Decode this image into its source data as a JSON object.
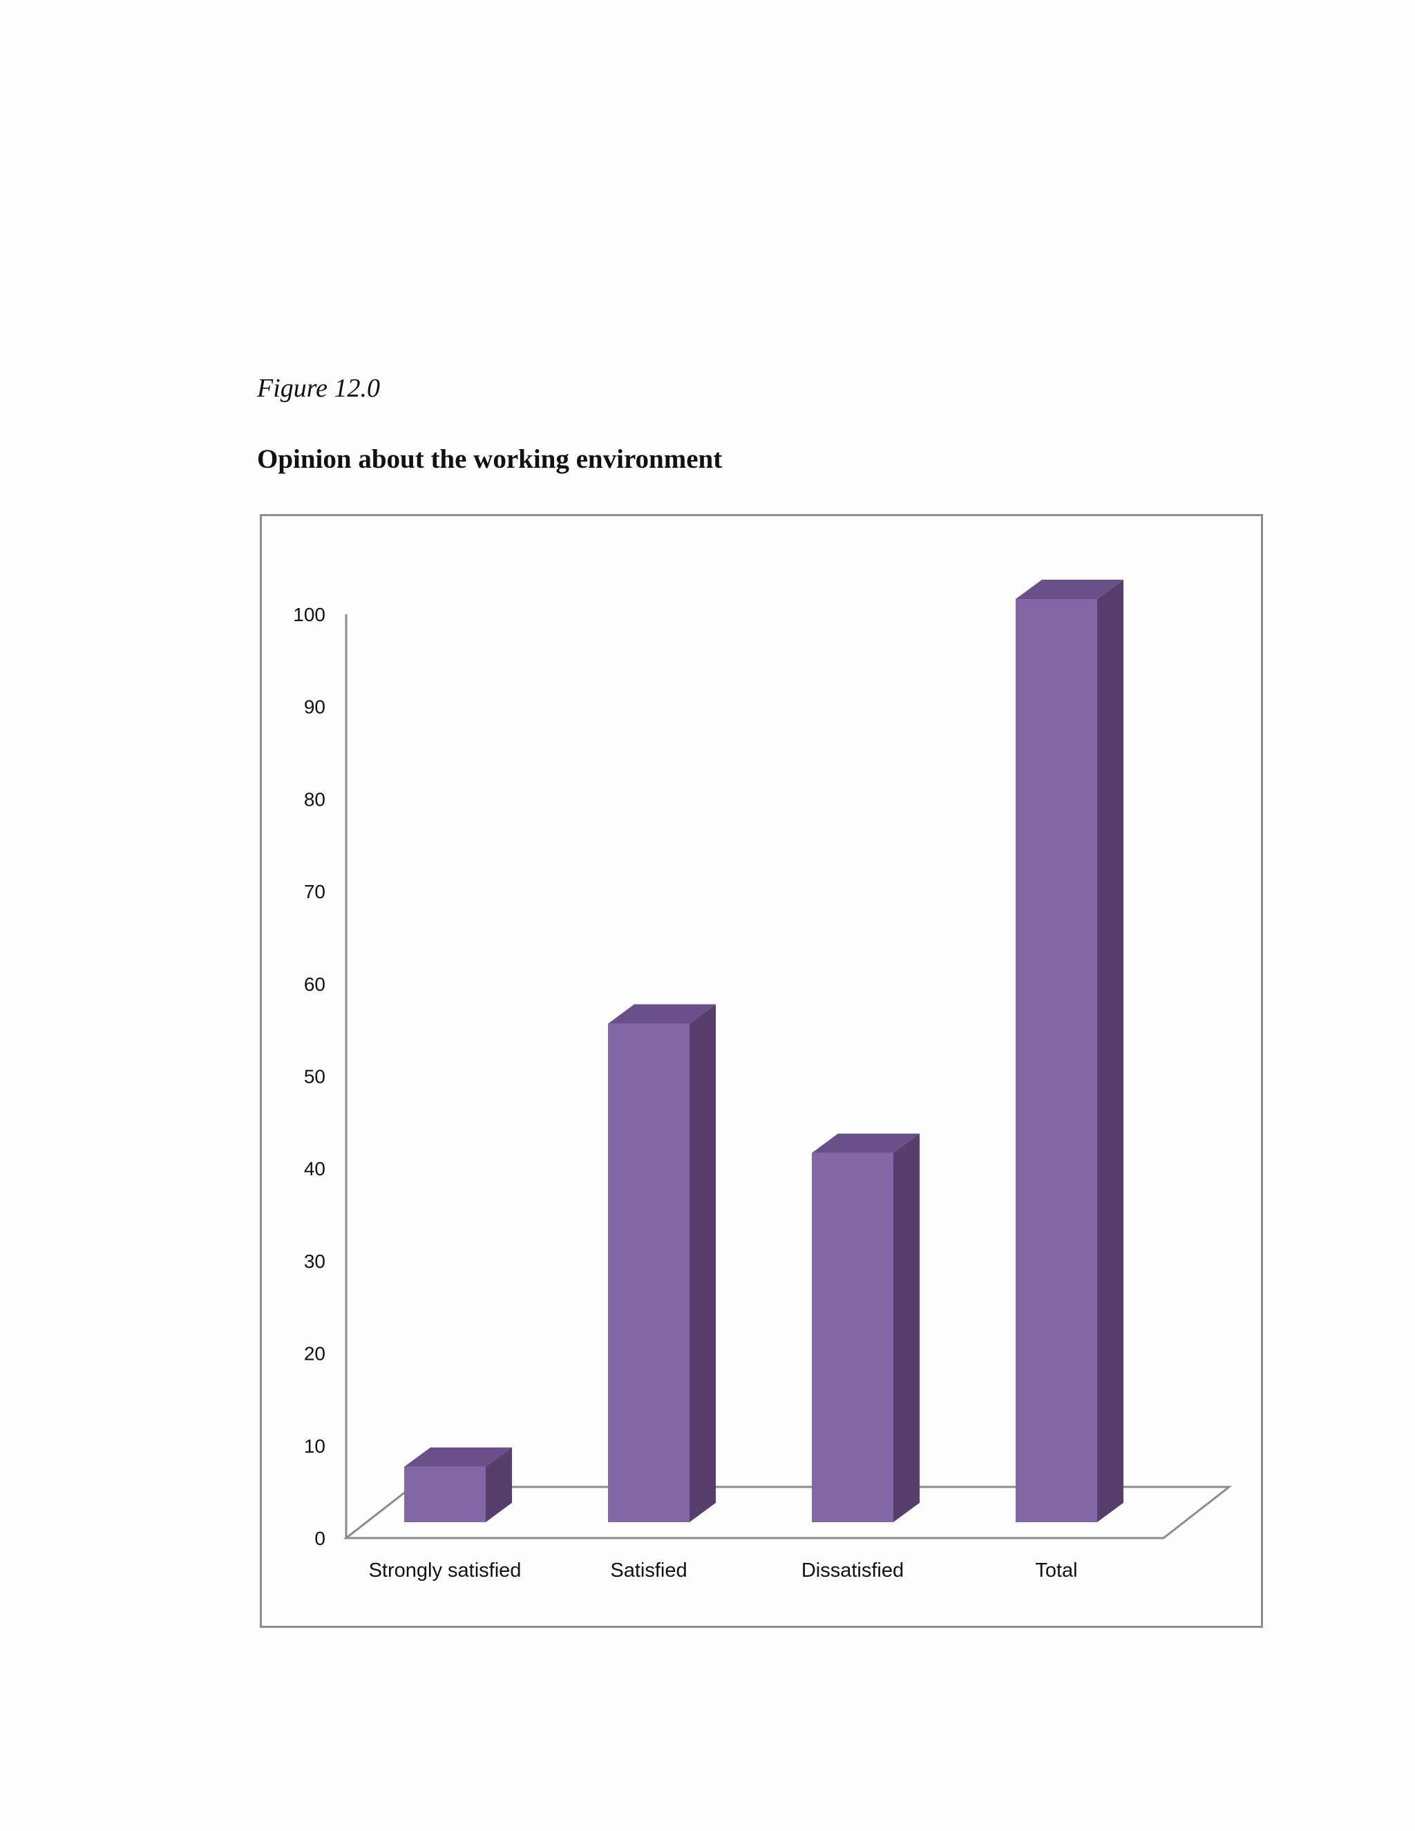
{
  "figure": {
    "label": "Figure 12.0",
    "title": "Opinion about the working environment"
  },
  "chart_data": {
    "type": "bar",
    "categories": [
      "Strongly satisfied",
      "Satisfied",
      "Dissatisfied",
      "Total"
    ],
    "values": [
      6,
      54,
      40,
      100
    ],
    "ylim": [
      0,
      100
    ],
    "yticks": [
      0,
      10,
      20,
      30,
      40,
      50,
      60,
      70,
      80,
      90,
      100
    ],
    "grid": false,
    "legend": "none",
    "style": "3d-column",
    "colors": {
      "front": "#8266a6",
      "side": "#563f6c",
      "top": "#6a5089",
      "axis": "#8c8c8c"
    }
  }
}
